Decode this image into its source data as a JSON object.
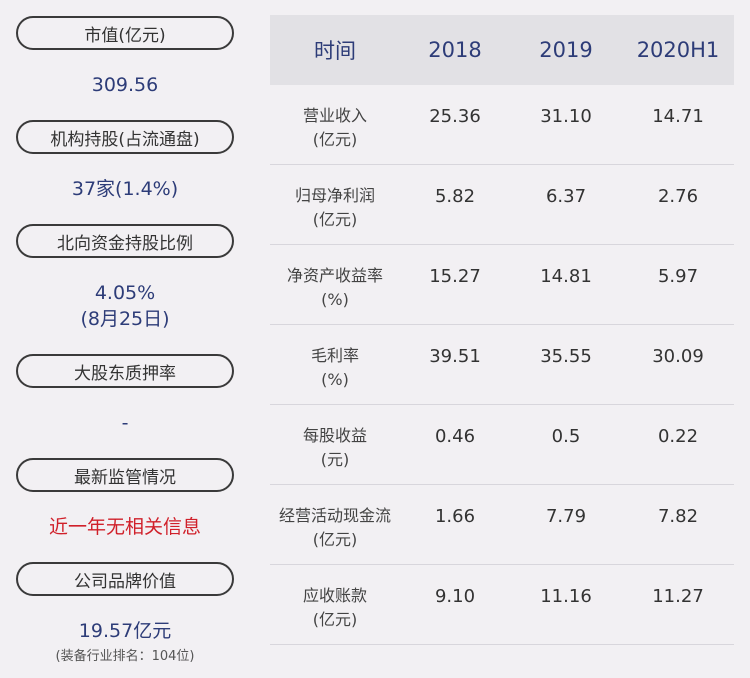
{
  "left": {
    "market_cap": {
      "label": "市值(亿元)",
      "value": "309.56"
    },
    "institution": {
      "label": "机构持股(占流通盘)",
      "value": "37家(1.4%)"
    },
    "northbound": {
      "label": "北向资金持股比例",
      "value_line1": "4.05%",
      "value_line2": "(8月25日)"
    },
    "pledge": {
      "label": "大股东质押率",
      "value": "-"
    },
    "supervision": {
      "label": "最新监管情况",
      "value": "近一年无相关信息"
    },
    "brand": {
      "label": "公司品牌价值",
      "value": "19.57亿元",
      "note": "(装备行业排名：104位)"
    }
  },
  "table": {
    "headers": [
      "时间",
      "2018",
      "2019",
      "2020H1"
    ],
    "rows": [
      {
        "label1": "营业收入",
        "label2": "(亿元)",
        "values": [
          "25.36",
          "31.10",
          "14.71"
        ]
      },
      {
        "label1": "归母净利润",
        "label2": "(亿元)",
        "values": [
          "5.82",
          "6.37",
          "2.76"
        ]
      },
      {
        "label1": "净资产收益率",
        "label2": "(%)",
        "values": [
          "15.27",
          "14.81",
          "5.97"
        ]
      },
      {
        "label1": "毛利率",
        "label2": "(%)",
        "values": [
          "39.51",
          "35.55",
          "30.09"
        ]
      },
      {
        "label1": "每股收益",
        "label2": "(元)",
        "values": [
          "0.46",
          "0.5",
          "0.22"
        ]
      },
      {
        "label1": "经营活动现金流",
        "label2": "(亿元)",
        "values": [
          "1.66",
          "7.79",
          "7.82"
        ]
      },
      {
        "label1": "应收账款",
        "label2": "(亿元)",
        "values": [
          "9.10",
          "11.16",
          "11.27"
        ]
      }
    ]
  }
}
